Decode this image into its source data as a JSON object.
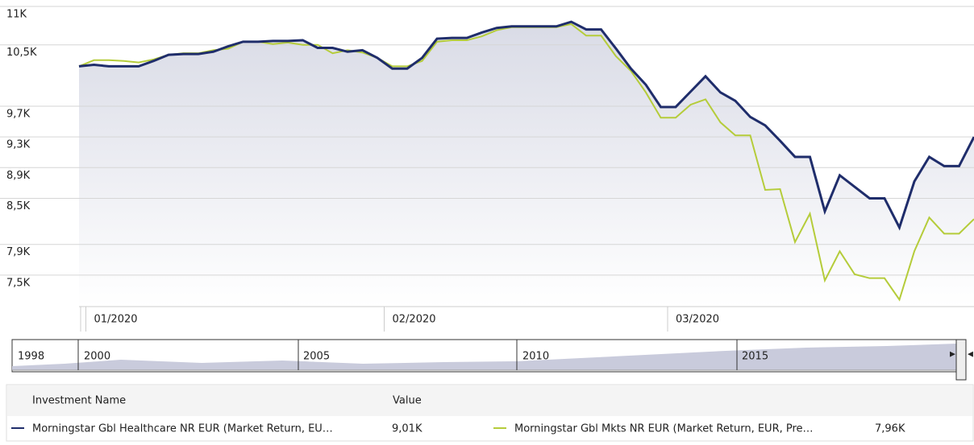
{
  "chart_data": {
    "type": "line",
    "categories": [
      null,
      "01/2020",
      null,
      null,
      null,
      null,
      null,
      null,
      null,
      null,
      null,
      null,
      null,
      null,
      null,
      null,
      null,
      null,
      null,
      null,
      null,
      "02/2020",
      null,
      null,
      null,
      null,
      null,
      null,
      null,
      null,
      null,
      null,
      null,
      null,
      null,
      null,
      null,
      null,
      null,
      null,
      "03/2020",
      null,
      null,
      null,
      null,
      null,
      null,
      null,
      null,
      null,
      null,
      null,
      null,
      null,
      null,
      null,
      null,
      null,
      null,
      null,
      null
    ],
    "series": [
      {
        "name": "Morningstar Gbl Healthcare NR EUR (Market Return, EU…",
        "color": "#1f2d6b",
        "values": [
          10220,
          10240,
          10220,
          10220,
          10220,
          10290,
          10370,
          10380,
          10380,
          10410,
          10480,
          10540,
          10540,
          10550,
          10550,
          10560,
          10460,
          10460,
          10410,
          10430,
          10330,
          10190,
          10190,
          10330,
          10580,
          10590,
          10590,
          10660,
          10720,
          10740,
          10740,
          10740,
          10740,
          10800,
          10700,
          10700,
          10450,
          10190,
          9980,
          9690,
          9690,
          9890,
          10090,
          9880,
          9770,
          9560,
          9450,
          9250,
          9040,
          9040,
          8330,
          8800,
          8650,
          8500,
          8500,
          8120,
          8720,
          9040,
          8920,
          8920,
          9300
        ]
      },
      {
        "name": "Morningstar Gbl Mkts NR EUR (Market Return, EUR, Pre…",
        "color": "#b5cc3a",
        "values": [
          10220,
          10300,
          10300,
          10290,
          10270,
          10310,
          10370,
          10390,
          10390,
          10430,
          10450,
          10540,
          10540,
          10510,
          10530,
          10500,
          10500,
          10390,
          10430,
          10400,
          10330,
          10220,
          10220,
          10290,
          10540,
          10560,
          10560,
          10610,
          10690,
          10730,
          10730,
          10730,
          10730,
          10770,
          10620,
          10620,
          10350,
          10160,
          9880,
          9550,
          9550,
          9720,
          9790,
          9490,
          9320,
          9320,
          8610,
          8620,
          7930,
          8300,
          7430,
          7810,
          7510,
          7460,
          7460,
          7180,
          7810,
          8250,
          8040,
          8040,
          8230
        ]
      }
    ],
    "ylim": [
      7100,
      11000
    ],
    "yticks": [
      {
        "value": 7500,
        "label": "7,5K"
      },
      {
        "value": 7900,
        "label": "7,9K"
      },
      {
        "value": 8500,
        "label": "8,5K"
      },
      {
        "value": 8900,
        "label": "8,9K"
      },
      {
        "value": 9300,
        "label": "9,3K"
      },
      {
        "value": 9700,
        "label": "9,7K"
      },
      {
        "value": 10500,
        "label": "10,5K"
      },
      {
        "value": 11000,
        "label": "11K"
      }
    ],
    "grid": true
  },
  "navigator": {
    "labels": [
      "1998",
      "2000",
      "2005",
      "2010",
      "2015"
    ]
  },
  "table": {
    "headers": [
      "Investment Name",
      "Value"
    ],
    "values": [
      "9,01K",
      "7,96K"
    ]
  }
}
